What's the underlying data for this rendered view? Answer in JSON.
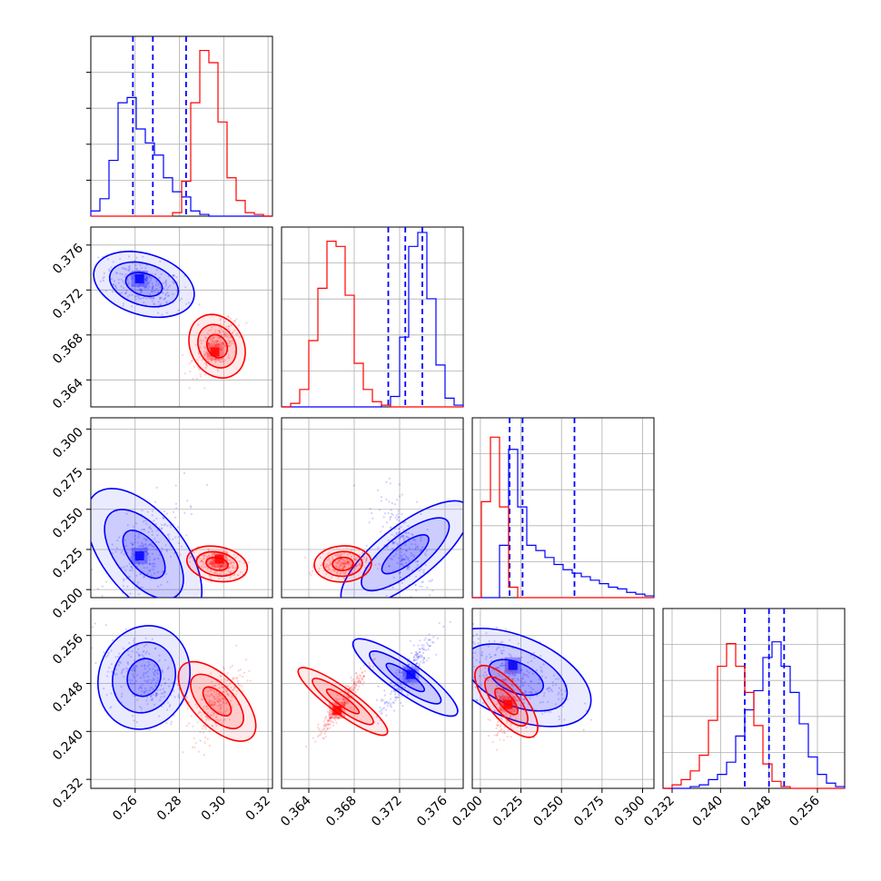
{
  "chart_data": {
    "type": "corner",
    "title": "",
    "colors": {
      "blue": "#0000ff",
      "red": "#ff0000",
      "grid": "#b0b0b0"
    },
    "grid": true,
    "parameters": [
      {
        "range": [
          0.24,
          0.322
        ],
        "ticks": [
          "0.26",
          "0.28",
          "0.30",
          "0.32"
        ],
        "tick_values": [
          0.26,
          0.28,
          0.3,
          0.32
        ]
      },
      {
        "range": [
          0.3616,
          0.3776
        ],
        "ticks": [
          "0.364",
          "0.368",
          "0.372",
          "0.376"
        ],
        "tick_values": [
          0.364,
          0.368,
          0.372,
          0.376
        ]
      },
      {
        "range": [
          0.195,
          0.307
        ],
        "ticks": [
          "0.200",
          "0.225",
          "0.250",
          "0.275",
          "0.300"
        ],
        "tick_values": [
          0.2,
          0.225,
          0.25,
          0.275,
          0.3
        ]
      },
      {
        "range": [
          0.2305,
          0.2605
        ],
        "ticks": [
          "0.232",
          "0.240",
          "0.248",
          "0.256"
        ],
        "tick_values": [
          0.232,
          0.24,
          0.248,
          0.256
        ]
      }
    ],
    "series": [
      {
        "color": "blue",
        "means": [
          0.264,
          0.3725,
          0.222,
          0.249
        ],
        "sds": [
          0.009,
          0.0012,
          0.018,
          0.0035
        ],
        "quantiles": [
          [
            0.259,
            0.268,
            0.283
          ],
          [
            0.371,
            0.3725,
            0.374
          ],
          [
            0.218,
            0.226,
            0.258
          ],
          [
            0.244,
            0.248,
            0.2505
          ]
        ],
        "hist": [
          [
            0.03,
            0.1,
            0.32,
            0.65,
            0.68,
            0.5,
            0.42,
            0.35,
            0.22,
            0.14,
            0.11,
            0.03,
            0.01,
            0,
            0,
            0,
            0,
            0,
            0,
            0
          ],
          [
            0,
            0,
            0,
            0,
            0,
            0,
            0,
            0,
            0,
            0,
            0,
            0.01,
            0.06,
            0.4,
            0.92,
            1.0,
            0.62,
            0.24,
            0.05,
            0.01
          ],
          [
            0,
            0,
            0,
            0.3,
            0.85,
            0.52,
            0.3,
            0.27,
            0.23,
            0.19,
            0.16,
            0.14,
            0.12,
            0.1,
            0.08,
            0.06,
            0.05,
            0.03,
            0.02,
            0.01
          ],
          [
            0,
            0,
            0,
            0.01,
            0.02,
            0.05,
            0.08,
            0.15,
            0.3,
            0.45,
            0.56,
            0.75,
            0.84,
            0.7,
            0.55,
            0.37,
            0.18,
            0.08,
            0.03,
            0.01
          ]
        ],
        "peaks": [
          [
            0.262,
            0.373
          ],
          [
            0.262,
            0.221
          ],
          [
            0.262,
            0.25
          ],
          [
            0.3735,
            0.22
          ],
          [
            0.373,
            0.2495
          ],
          [
            0.22,
            0.251
          ]
        ]
      },
      {
        "color": "red",
        "means": [
          0.297,
          0.367,
          0.216,
          0.245
        ],
        "sds": [
          0.0055,
          0.0011,
          0.004,
          0.003
        ],
        "quantiles": [],
        "hist": [
          [
            0,
            0,
            0,
            0,
            0,
            0,
            0,
            0,
            0,
            0.02,
            0.2,
            0.65,
            0.95,
            0.88,
            0.54,
            0.22,
            0.09,
            0.02,
            0.01,
            0
          ],
          [
            0,
            0.02,
            0.1,
            0.38,
            0.68,
            0.95,
            0.92,
            0.64,
            0.25,
            0.1,
            0.03,
            0.01,
            0,
            0,
            0,
            0,
            0,
            0,
            0,
            0
          ],
          [
            0,
            0.55,
            0.92,
            0.52,
            0.06,
            0,
            0,
            0,
            0,
            0,
            0,
            0,
            0,
            0,
            0,
            0,
            0,
            0,
            0,
            0
          ],
          [
            0,
            0.02,
            0.05,
            0.1,
            0.19,
            0.39,
            0.7,
            0.83,
            0.7,
            0.55,
            0.36,
            0.14,
            0.04,
            0.01,
            0,
            0,
            0,
            0,
            0,
            0
          ]
        ],
        "peaks": [
          [
            0.296,
            0.3665
          ],
          [
            0.298,
            0.219
          ],
          [
            0.296,
            0.2445
          ],
          [
            0.3675,
            0.218
          ],
          [
            0.3665,
            0.2435
          ],
          [
            0.217,
            0.2445
          ]
        ]
      }
    ]
  }
}
